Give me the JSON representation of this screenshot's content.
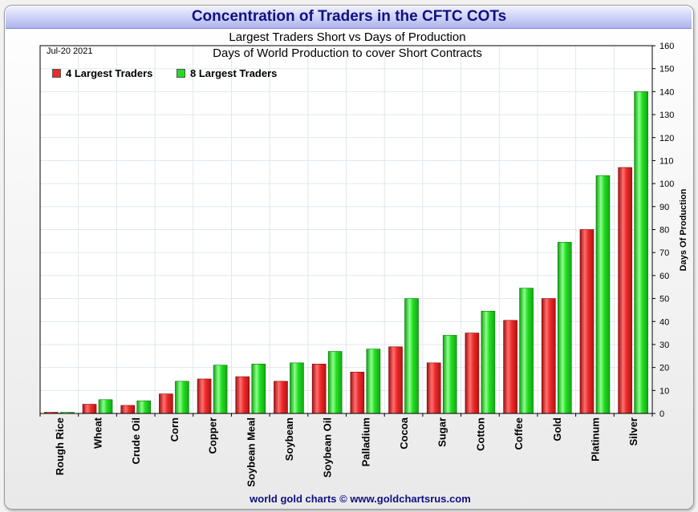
{
  "header": {
    "title": "Concentration of Traders in the CFTC COTs",
    "subtitle1": "Largest Traders Short vs Days of Production",
    "subtitle2": "Days of World Production to cover Short Contracts",
    "date": "Jul-20  2021"
  },
  "footer": {
    "credit": "world gold charts © www.goldchartsrus.com"
  },
  "colors": {
    "series_red": "#ee2a2a",
    "series_green": "#22dd22",
    "title": "#101080"
  },
  "chart_data": {
    "type": "bar",
    "ylabel": "Days Of Production",
    "ylim": [
      0,
      160
    ],
    "y_ticks": [
      0,
      10,
      20,
      30,
      40,
      50,
      60,
      70,
      80,
      90,
      100,
      110,
      120,
      130,
      140,
      150,
      160
    ],
    "y_axis_side": "right",
    "grid": true,
    "legend_placement": "top-left",
    "categories": [
      "Rough Rice",
      "Wheat",
      "Crude Oil",
      "Corn",
      "Copper",
      "Soybean Meal",
      "Soybean",
      "Soybean Oil",
      "Palladium",
      "Cocoa",
      "Sugar",
      "Cotton",
      "Coffee",
      "Gold",
      "Platinum",
      "Silver"
    ],
    "series": [
      {
        "name": "4 Largest Traders",
        "values": [
          0.5,
          4,
          3.5,
          8.5,
          15,
          16,
          14,
          21.5,
          18,
          29,
          22,
          35,
          40.5,
          50,
          80,
          107
        ]
      },
      {
        "name": "8 Largest Traders",
        "values": [
          0.5,
          6,
          5.5,
          14,
          21,
          21.5,
          22,
          27,
          28,
          50,
          34,
          44.5,
          54.5,
          74.5,
          103.5,
          140
        ]
      }
    ]
  }
}
